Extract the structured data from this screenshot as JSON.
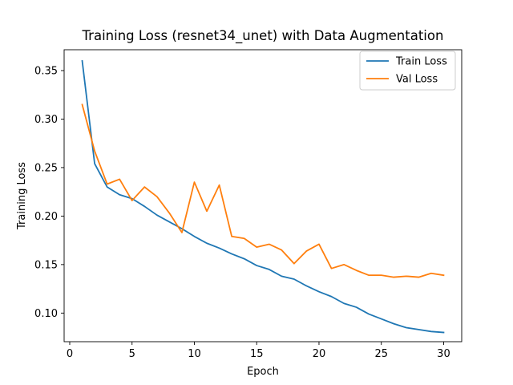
{
  "chart_data": {
    "type": "line",
    "title": "Training Loss (resnet34_unet) with Data Augmentation",
    "xlabel": "Epoch",
    "ylabel": "Training Loss",
    "xlim": [
      -0.45,
      31.45
    ],
    "ylim": [
      0.0705,
      0.3715
    ],
    "xticks": [
      0,
      5,
      10,
      15,
      20,
      25,
      30
    ],
    "yticks": [
      0.1,
      0.15,
      0.2,
      0.25,
      0.3,
      0.35
    ],
    "xtick_labels": [
      "0",
      "5",
      "10",
      "15",
      "20",
      "25",
      "30"
    ],
    "ytick_labels": [
      "0.10",
      "0.15",
      "0.20",
      "0.25",
      "0.30",
      "0.35"
    ],
    "grid": false,
    "legend_position": "top-right",
    "x": [
      1,
      2,
      3,
      4,
      5,
      6,
      7,
      8,
      9,
      10,
      11,
      12,
      13,
      14,
      15,
      16,
      17,
      18,
      19,
      20,
      21,
      22,
      23,
      24,
      25,
      26,
      27,
      28,
      29,
      30
    ],
    "series": [
      {
        "name": "Train Loss",
        "color": "#1f77b4",
        "values": [
          0.36,
          0.254,
          0.23,
          0.222,
          0.218,
          0.21,
          0.201,
          0.194,
          0.187,
          0.179,
          0.172,
          0.167,
          0.161,
          0.156,
          0.149,
          0.145,
          0.138,
          0.135,
          0.128,
          0.122,
          0.117,
          0.11,
          0.106,
          0.099,
          0.094,
          0.089,
          0.085,
          0.083,
          0.081,
          0.08
        ]
      },
      {
        "name": "Val Loss",
        "color": "#ff7f0e",
        "values": [
          0.315,
          0.267,
          0.233,
          0.238,
          0.216,
          0.23,
          0.22,
          0.203,
          0.183,
          0.235,
          0.205,
          0.232,
          0.179,
          0.177,
          0.168,
          0.171,
          0.165,
          0.151,
          0.164,
          0.171,
          0.146,
          0.15,
          0.144,
          0.139,
          0.139,
          0.137,
          0.138,
          0.137,
          0.141,
          0.139
        ]
      }
    ]
  }
}
